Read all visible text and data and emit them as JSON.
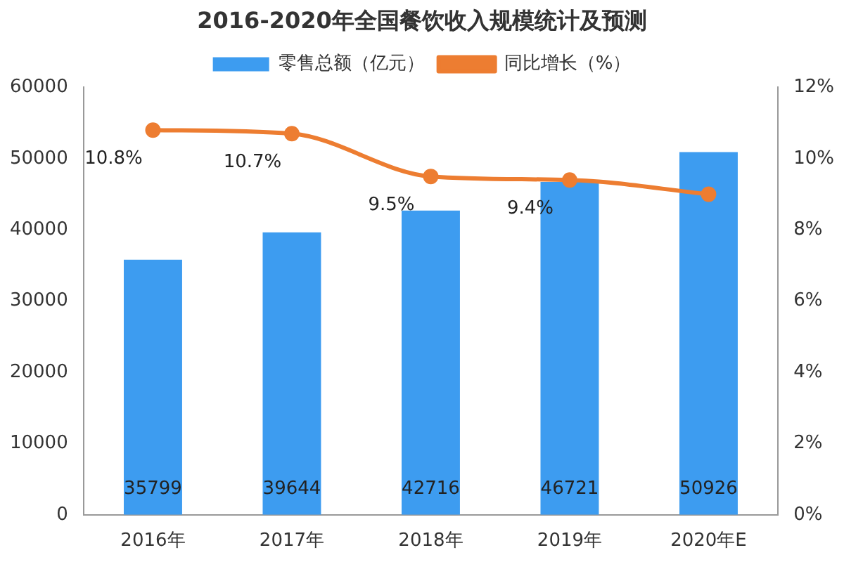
{
  "chart_data": {
    "type": "bar",
    "title": "2016-2020年全国餐饮收入规模统计及预测",
    "categories": [
      "2016年",
      "2017年",
      "2018年",
      "2019年",
      "2020年E"
    ],
    "series": [
      {
        "name": "零售总额（亿元）",
        "color": "#3d9cf0",
        "values": [
          35799,
          39644,
          42716,
          46721,
          50926
        ],
        "value_labels": [
          "35799",
          "39644",
          "42716",
          "46721",
          "50926"
        ]
      },
      {
        "name": "同比增长（%）",
        "type": "line",
        "axis": "y2",
        "color": "#ed7d31",
        "marker": "circle",
        "values": [
          10.8,
          10.7,
          9.5,
          9.4,
          9.0
        ],
        "value_labels": [
          "10.8%",
          "10.7%",
          "9.5%",
          "9.4%",
          null
        ]
      }
    ],
    "ylim": [
      0,
      60000
    ],
    "yticks": [
      0,
      10000,
      20000,
      30000,
      40000,
      50000,
      60000
    ],
    "y2lim": [
      0,
      12
    ],
    "y2ticks": [
      {
        "value": 0,
        "label": "0%"
      },
      {
        "value": 2,
        "label": "2%"
      },
      {
        "value": 4,
        "label": "4%"
      },
      {
        "value": 6,
        "label": "6%"
      },
      {
        "value": 8,
        "label": "8%"
      },
      {
        "value": 10,
        "label": "10%"
      },
      {
        "value": 12,
        "label": "12%"
      }
    ],
    "grid": false,
    "legend": "top"
  }
}
